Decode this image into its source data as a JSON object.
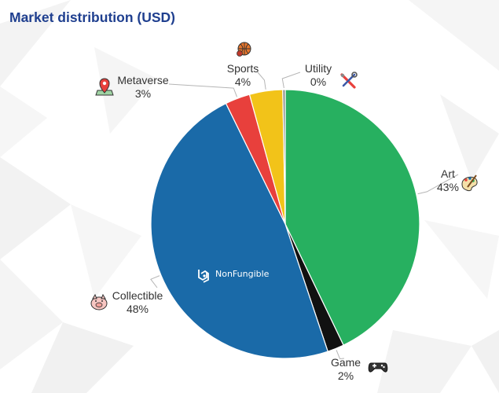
{
  "title": "Market distribution (USD)",
  "brand": {
    "name": "NonFungible"
  },
  "chart_data": {
    "type": "pie",
    "title": "Market distribution (USD)",
    "slices": [
      {
        "label": "Art",
        "value": 43,
        "pct_label": "43%",
        "color": "#27b060",
        "icon": "palette-icon"
      },
      {
        "label": "Game",
        "value": 2,
        "pct_label": "2%",
        "color": "#111111",
        "icon": "gamepad-icon"
      },
      {
        "label": "Collectible",
        "value": 48,
        "pct_label": "48%",
        "color": "#1a6aa8",
        "icon": "pig-icon"
      },
      {
        "label": "Metaverse",
        "value": 3,
        "pct_label": "3%",
        "color": "#e8403c",
        "icon": "map-pin-icon"
      },
      {
        "label": "Sports",
        "value": 4,
        "pct_label": "4%",
        "color": "#f2c319",
        "icon": "basketball-icon"
      },
      {
        "label": "Utility",
        "value": 0.3,
        "pct_label": "0%",
        "color": "#888888",
        "icon": "tools-icon"
      }
    ],
    "start": "12 o'clock",
    "direction": "clockwise",
    "legend": "none",
    "labels": "outside with leader lines"
  }
}
